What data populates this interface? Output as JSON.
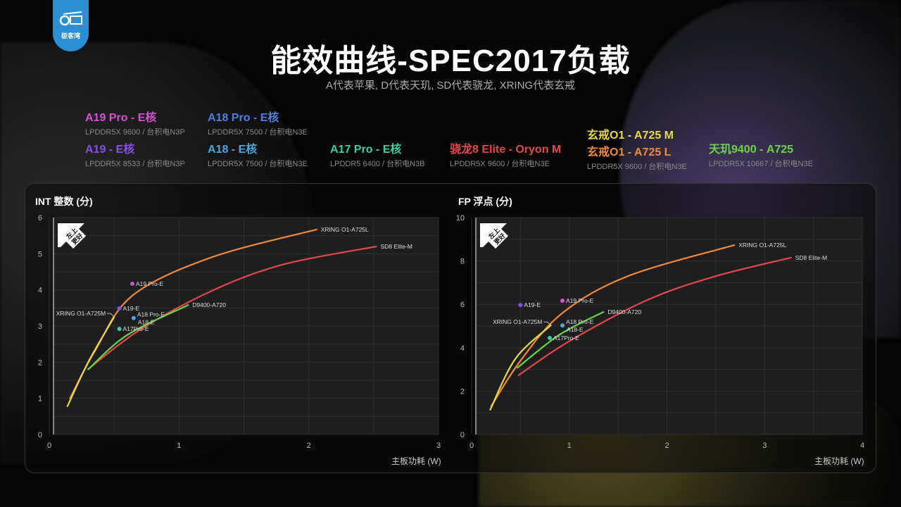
{
  "logo": {
    "text": "极客湾"
  },
  "header": {
    "title": "能效曲线-SPEC2017负载",
    "subtitle": "A代表苹果, D代表天玑, SD代表骁龙, XRING代表玄戒"
  },
  "legend": [
    {
      "name": "A19 Pro - E核",
      "spec": "LPDDR5X 9600 / 台积电N3P",
      "color": "#d94fd6"
    },
    {
      "name": "A18 Pro - E核",
      "spec": "LPDDR5X 7500 / 台积电N3E",
      "color": "#4f7fe0"
    },
    {
      "name": "A19 - E核",
      "spec": "LPDDR5X 8533 / 台积电N3P",
      "color": "#8a4fe8"
    },
    {
      "name": "A18 - E核",
      "spec": "LPDDR5X 7500 / 台积电N3E",
      "color": "#4aa8dc"
    },
    {
      "name": "A17 Pro - E核",
      "spec": "LPDDR5 6400 / 台积电N3B",
      "color": "#3ccf9e"
    },
    {
      "name": "骁龙8 Elite - Oryon M",
      "spec": "LPDDR5X 9600 / 台积电N3E",
      "color": "#e5484a"
    },
    {
      "name": "玄戒O1 - A725 M",
      "color": "#e8d84a"
    },
    {
      "name": "玄戒O1 - A725 L",
      "spec": "LPDDR5X 9600 / 台积电N3E",
      "color": "#f08a3c"
    },
    {
      "name": "天玑9400 - A725",
      "spec": "LPDDR5X 10667 / 台积电N3E",
      "color": "#6ad44a"
    }
  ],
  "badge": {
    "text1": "左上",
    "text2": "更好"
  },
  "chart_data": [
    {
      "type": "line",
      "title": "INT 整数 (分)",
      "xlabel": "主板功耗 (W)",
      "ylabel": "",
      "xlim": [
        0,
        3
      ],
      "ylim": [
        0,
        6
      ],
      "xticks": [
        "0",
        "1",
        "2",
        "3"
      ],
      "yticks": [
        "0",
        "1",
        "2",
        "3",
        "4",
        "5",
        "6"
      ],
      "grid": true,
      "series": [
        {
          "name": "XRING O1-A725L",
          "color": "#f08a3c",
          "points": [
            [
              0.16,
              1.0
            ],
            [
              0.35,
              2.3
            ],
            [
              0.64,
              3.84
            ],
            [
              1.25,
              4.9
            ],
            [
              2.06,
              5.67
            ]
          ]
        },
        {
          "name": "SD8 Elite-M",
          "color": "#e5484a",
          "points": [
            [
              0.3,
              1.81
            ],
            [
              0.7,
              2.9
            ],
            [
              1.25,
              3.97
            ],
            [
              1.8,
              4.7
            ],
            [
              2.52,
              5.2
            ]
          ]
        },
        {
          "name": "D9400-A720",
          "color": "#6ad44a",
          "points": [
            [
              0.3,
              1.8
            ],
            [
              0.6,
              2.75
            ],
            [
              1.07,
              3.58
            ]
          ]
        },
        {
          "name": "XRING O1-A725M",
          "color": "#e8d84a",
          "points": [
            [
              0.14,
              0.78
            ],
            [
              0.3,
              2.0
            ],
            [
              0.5,
              3.25
            ]
          ]
        }
      ],
      "scatter": [
        {
          "name": "A19 Pro-E",
          "color": "#d94fd6",
          "x": 0.64,
          "y": 4.17
        },
        {
          "name": "A19-E",
          "color": "#8a4fe8",
          "x": 0.54,
          "y": 3.49
        },
        {
          "name": "A18 Pro-E",
          "color": "#4aa8dc",
          "x": 0.65,
          "y": 3.22
        },
        {
          "name": "A18-E",
          "color": "#4aa8dc",
          "x": 0.65,
          "y": 3.2
        },
        {
          "name": "A17Pro-E",
          "color": "#3ccf9e",
          "x": 0.54,
          "y": 2.92
        }
      ]
    },
    {
      "type": "line",
      "title": "FP 浮点 (分)",
      "xlabel": "主板功耗 (W)",
      "ylabel": "",
      "xlim": [
        0,
        4
      ],
      "ylim": [
        0,
        10
      ],
      "xticks": [
        "0",
        "1",
        "2",
        "3",
        "4"
      ],
      "yticks": [
        "0",
        "2",
        "4",
        "6",
        "8",
        "10"
      ],
      "grid": true,
      "series": [
        {
          "name": "XRING O1-A725L",
          "color": "#f08a3c",
          "points": [
            [
              0.2,
              1.3
            ],
            [
              0.5,
              3.4
            ],
            [
              0.93,
              5.6
            ],
            [
              1.6,
              7.3
            ],
            [
              2.69,
              8.73
            ]
          ]
        },
        {
          "name": "SD8 Elite-M",
          "color": "#e5484a",
          "points": [
            [
              0.48,
              2.73
            ],
            [
              1.0,
              4.3
            ],
            [
              1.8,
              6.2
            ],
            [
              2.5,
              7.3
            ],
            [
              3.27,
              8.15
            ]
          ]
        },
        {
          "name": "D9400-A720",
          "color": "#6ad44a",
          "points": [
            [
              0.47,
              3.08
            ],
            [
              0.9,
              4.6
            ],
            [
              1.35,
              5.65
            ]
          ]
        },
        {
          "name": "XRING O1-A725M",
          "color": "#e8d84a",
          "points": [
            [
              0.19,
              1.14
            ],
            [
              0.45,
              3.5
            ],
            [
              0.81,
              5.03
            ]
          ]
        }
      ],
      "scatter": [
        {
          "name": "A19-E",
          "color": "#8a4fe8",
          "x": 0.5,
          "y": 5.97
        },
        {
          "name": "A19 Pro-E",
          "color": "#d94fd6",
          "x": 0.93,
          "y": 6.17
        },
        {
          "name": "A18 Pro-E",
          "color": "#4aa8dc",
          "x": 0.93,
          "y": 5.03
        },
        {
          "name": "A18-E",
          "color": "#4aa8dc",
          "x": 0.93,
          "y": 5.0
        },
        {
          "name": "A17Pro-E",
          "color": "#3ccf9e",
          "x": 0.8,
          "y": 4.45
        }
      ]
    }
  ]
}
